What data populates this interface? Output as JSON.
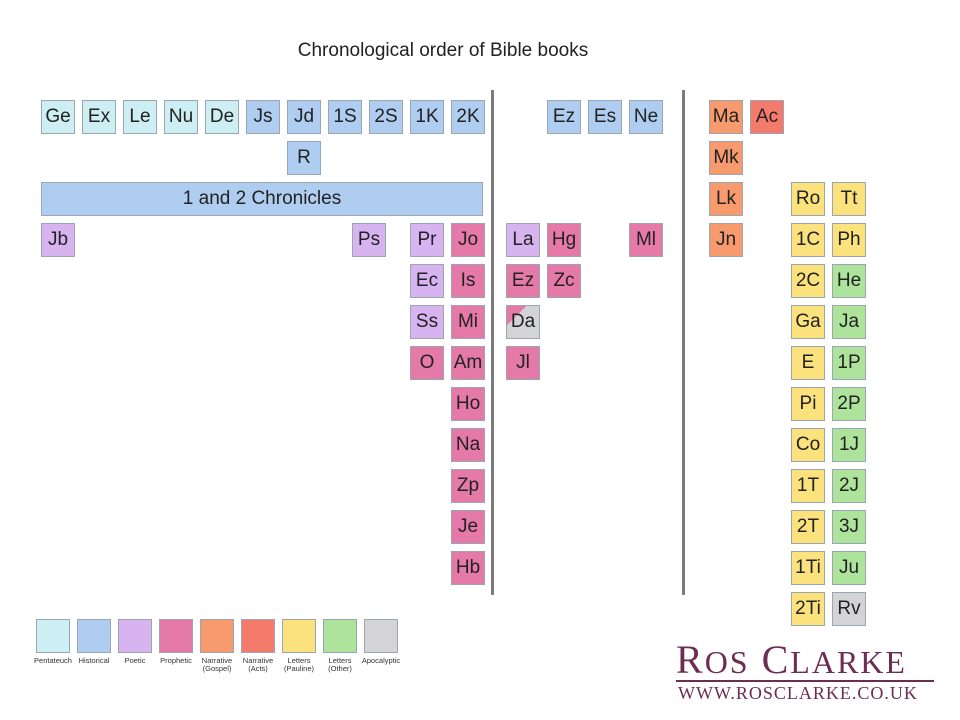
{
  "title": "Chronological order of Bible books",
  "colors": {
    "pentateuch": "#cdeef3",
    "historical": "#aecdf0",
    "poetic": "#d7b3f0",
    "prophetic": "#e57aa8",
    "narrative_gospel": "#f79a6e",
    "narrative_acts": "#f47a6c",
    "letters_pauline": "#fbe27c",
    "letters_other": "#aee39c",
    "apocalyptic": "#d4d4d6"
  },
  "books": [
    {
      "label": "Ge",
      "category": "pentateuch"
    },
    {
      "label": "Ex",
      "category": "pentateuch"
    },
    {
      "label": "Le",
      "category": "pentateuch"
    },
    {
      "label": "Nu",
      "category": "pentateuch"
    },
    {
      "label": "De",
      "category": "pentateuch"
    },
    {
      "label": "Js",
      "category": "historical"
    },
    {
      "label": "Jd",
      "category": "historical"
    },
    {
      "label": "1S",
      "category": "historical"
    },
    {
      "label": "2S",
      "category": "historical"
    },
    {
      "label": "1K",
      "category": "historical"
    },
    {
      "label": "2K",
      "category": "historical"
    },
    {
      "label": "R",
      "category": "historical"
    },
    {
      "label": "1 and 2 Chronicles",
      "category": "historical"
    },
    {
      "label": "Jb",
      "category": "poetic"
    },
    {
      "label": "Ps",
      "category": "poetic"
    },
    {
      "label": "Pr",
      "category": "poetic"
    },
    {
      "label": "Ec",
      "category": "poetic"
    },
    {
      "label": "Ss",
      "category": "poetic"
    },
    {
      "label": "O",
      "category": "prophetic"
    },
    {
      "label": "Jo",
      "category": "prophetic"
    },
    {
      "label": "Is",
      "category": "prophetic"
    },
    {
      "label": "Mi",
      "category": "prophetic"
    },
    {
      "label": "Am",
      "category": "prophetic"
    },
    {
      "label": "Ho",
      "category": "prophetic"
    },
    {
      "label": "Na",
      "category": "prophetic"
    },
    {
      "label": "Zp",
      "category": "prophetic"
    },
    {
      "label": "Je",
      "category": "prophetic"
    },
    {
      "label": "Hb",
      "category": "prophetic"
    },
    {
      "label": "La",
      "category": "poetic"
    },
    {
      "label": "Ez",
      "category": "prophetic"
    },
    {
      "label": "Da",
      "category": "prophetic-apocalyptic"
    },
    {
      "label": "Jl",
      "category": "prophetic"
    },
    {
      "label": "Hg",
      "category": "prophetic"
    },
    {
      "label": "Zc",
      "category": "prophetic"
    },
    {
      "label": "Ml",
      "category": "prophetic"
    },
    {
      "label": "Ez",
      "category": "historical"
    },
    {
      "label": "Es",
      "category": "historical"
    },
    {
      "label": "Ne",
      "category": "historical"
    },
    {
      "label": "Ma",
      "category": "narrative_gospel"
    },
    {
      "label": "Ac",
      "category": "narrative_acts"
    },
    {
      "label": "Mk",
      "category": "narrative_gospel"
    },
    {
      "label": "Lk",
      "category": "narrative_gospel"
    },
    {
      "label": "Jn",
      "category": "narrative_gospel"
    },
    {
      "label": "Ro",
      "category": "letters_pauline"
    },
    {
      "label": "1C",
      "category": "letters_pauline"
    },
    {
      "label": "2C",
      "category": "letters_pauline"
    },
    {
      "label": "Ga",
      "category": "letters_pauline"
    },
    {
      "label": "E",
      "category": "letters_pauline"
    },
    {
      "label": "Pi",
      "category": "letters_pauline"
    },
    {
      "label": "Co",
      "category": "letters_pauline"
    },
    {
      "label": "1T",
      "category": "letters_pauline"
    },
    {
      "label": "2T",
      "category": "letters_pauline"
    },
    {
      "label": "1Ti",
      "category": "letters_pauline"
    },
    {
      "label": "2Ti",
      "category": "letters_pauline"
    },
    {
      "label": "Tt",
      "category": "letters_pauline"
    },
    {
      "label": "Ph",
      "category": "letters_pauline"
    },
    {
      "label": "He",
      "category": "letters_other"
    },
    {
      "label": "Ja",
      "category": "letters_other"
    },
    {
      "label": "1P",
      "category": "letters_other"
    },
    {
      "label": "2P",
      "category": "letters_other"
    },
    {
      "label": "1J",
      "category": "letters_other"
    },
    {
      "label": "2J",
      "category": "letters_other"
    },
    {
      "label": "3J",
      "category": "letters_other"
    },
    {
      "label": "Ju",
      "category": "letters_other"
    },
    {
      "label": "Rv",
      "category": "apocalyptic"
    }
  ],
  "legend": [
    {
      "label": "Pentateuch",
      "category": "pentateuch"
    },
    {
      "label": "Historical",
      "category": "historical"
    },
    {
      "label": "Poetic",
      "category": "poetic"
    },
    {
      "label": "Prophetic",
      "category": "prophetic"
    },
    {
      "label": "Narrative\n(Gospel)",
      "category": "narrative_gospel"
    },
    {
      "label": "Narrative\n(Acts)",
      "category": "narrative_acts"
    },
    {
      "label": "Letters\n(Pauline)",
      "category": "letters_pauline"
    },
    {
      "label": "Letters\n(Other)",
      "category": "letters_other"
    },
    {
      "label": "Apocalyptic",
      "category": "apocalyptic"
    }
  ],
  "brand": {
    "name": "Ros Clarke",
    "url": "WWW.ROSCLARKE.CO.UK"
  }
}
